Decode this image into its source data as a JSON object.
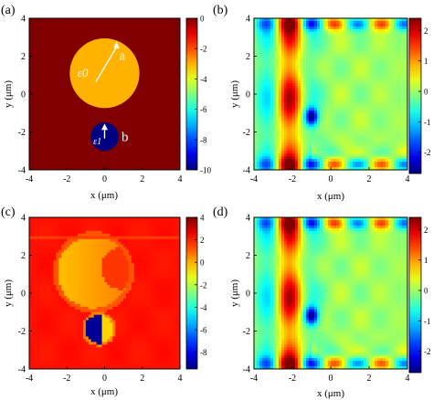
{
  "chart_data": [
    {
      "panel": "(a)",
      "type": "heatmap",
      "x": [
        -4,
        4
      ],
      "y": [
        -4,
        4
      ],
      "xlabel": "x (μm)",
      "ylabel": "y (μm)",
      "xticks": [
        "-4",
        "-2",
        "0",
        "2",
        "4"
      ],
      "yticks": [
        "-4",
        "-2",
        "0",
        "2",
        "4"
      ],
      "colorbar": {
        "range": [
          -10,
          0
        ],
        "ticks": [
          "0",
          "-2",
          "-4",
          "-6",
          "-8",
          "-10"
        ]
      },
      "background_value": 0,
      "shapes": [
        {
          "kind": "circle",
          "cx": 0,
          "cy": 1.1,
          "r": 1.85,
          "value": -3,
          "label": "ε0",
          "arrow_label": "a"
        },
        {
          "kind": "circle",
          "cx": 0,
          "cy": -2.25,
          "r": 0.75,
          "value": -10,
          "label": "ε1",
          "arrow_label": "b"
        }
      ]
    },
    {
      "panel": "(b)",
      "type": "heatmap",
      "x": [
        -4,
        4
      ],
      "y": [
        -4,
        4
      ],
      "xlabel": "x (μm)",
      "ylabel": "y (μm)",
      "xticks": [
        "-4",
        "-2",
        "0",
        "2",
        "4"
      ],
      "yticks": [
        "-4",
        "-2",
        "0",
        "2",
        "4"
      ],
      "colorbar": {
        "range": [
          -2.7,
          2.4
        ],
        "ticks": [
          "2",
          "1",
          "0",
          "-1",
          "-2"
        ]
      }
    },
    {
      "panel": "(c)",
      "type": "heatmap",
      "x": [
        -4,
        4
      ],
      "y": [
        -4,
        4
      ],
      "xlabel": "x (μm)",
      "ylabel": "y (μm)",
      "xticks": [
        "-4",
        "-2",
        "0",
        "2",
        "4"
      ],
      "yticks": [
        "-4",
        "-2",
        "0",
        "2",
        "4"
      ],
      "colorbar": {
        "range": [
          -9.5,
          4
        ],
        "ticks": [
          "4",
          "2",
          "0",
          "-2",
          "-4",
          "-6",
          "-8"
        ]
      }
    },
    {
      "panel": "(d)",
      "type": "heatmap",
      "x": [
        -4,
        4
      ],
      "y": [
        -4,
        4
      ],
      "xlabel": "x (μm)",
      "ylabel": "y (μm)",
      "xticks": [
        "-4",
        "-2",
        "0",
        "2",
        "4"
      ],
      "yticks": [
        "-4",
        "-2",
        "0",
        "2",
        "4"
      ],
      "colorbar": {
        "range": [
          -2.7,
          2.4
        ],
        "ticks": [
          "2",
          "1",
          "0",
          "-1",
          "-2"
        ]
      }
    }
  ]
}
